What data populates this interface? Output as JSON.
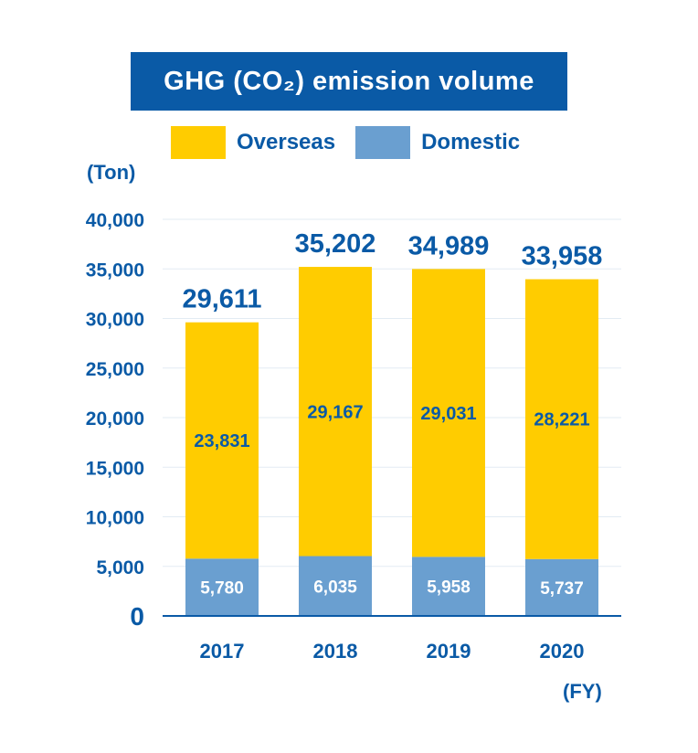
{
  "title": "GHG (CO₂) emission volume",
  "legend": [
    {
      "label": "Overseas",
      "color": "#ffcc00"
    },
    {
      "label": "Domestic",
      "color": "#6a9fd0"
    }
  ],
  "colors": {
    "accent": "#0a5aa6",
    "overseas": "#ffcc00",
    "domestic": "#6a9fd0",
    "gridline": "#e3ebf3"
  },
  "chart_data": {
    "type": "bar",
    "stacked": true,
    "title": "GHG (CO₂) emission volume",
    "ylabel": "(Ton)",
    "xlabel": "(FY)",
    "categories": [
      "2017",
      "2018",
      "2019",
      "2020"
    ],
    "series": [
      {
        "name": "Domestic",
        "values": [
          5780,
          6035,
          5958,
          5737
        ]
      },
      {
        "name": "Overseas",
        "values": [
          23831,
          29167,
          29031,
          28221
        ]
      }
    ],
    "totals": [
      "29,611",
      "35,202",
      "34,989",
      "33,958"
    ],
    "domestic_labels": [
      "5,780",
      "6,035",
      "5,958",
      "5,737"
    ],
    "overseas_labels": [
      "23,831",
      "29,167",
      "29,031",
      "28,221"
    ],
    "yticks": [
      0,
      5000,
      10000,
      15000,
      20000,
      25000,
      30000,
      35000,
      40000
    ],
    "ytick_labels": [
      "0",
      "5,000",
      "10,000",
      "15,000",
      "20,000",
      "25,000",
      "30,000",
      "35,000",
      "40,000"
    ],
    "ylim": [
      0,
      40000
    ],
    "grid": true,
    "legend_position": "top"
  }
}
